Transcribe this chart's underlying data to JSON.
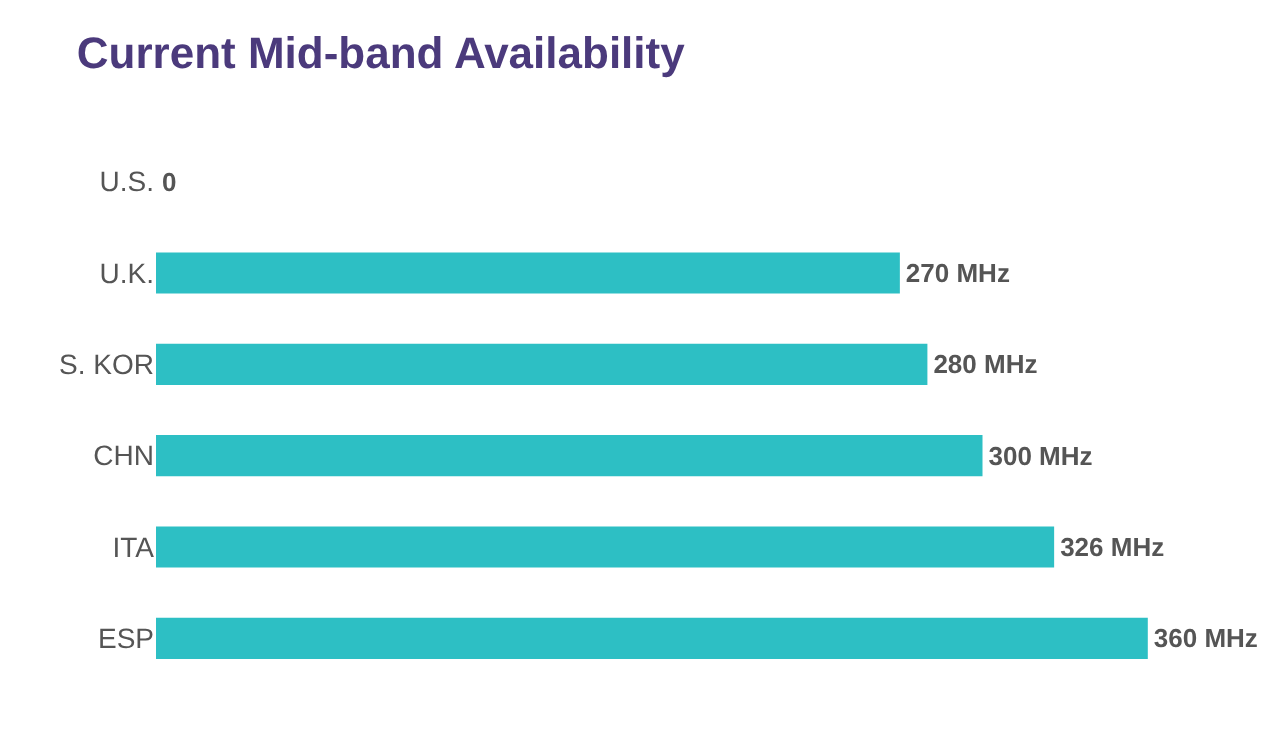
{
  "chart_data": {
    "type": "bar",
    "orientation": "horizontal",
    "title": "Current Mid-band Availability",
    "categories": [
      "U.S.",
      "U.K.",
      "S. KOR",
      "CHN",
      "ITA",
      "ESP"
    ],
    "values": [
      0,
      270,
      280,
      300,
      326,
      360
    ],
    "value_labels": [
      "0",
      "270 MHz",
      "280 MHz",
      "300 MHz",
      "326 MHz",
      "360 MHz"
    ],
    "color": "#2dbfc4",
    "tick_labels": "y",
    "grid": false,
    "legend": false
  }
}
